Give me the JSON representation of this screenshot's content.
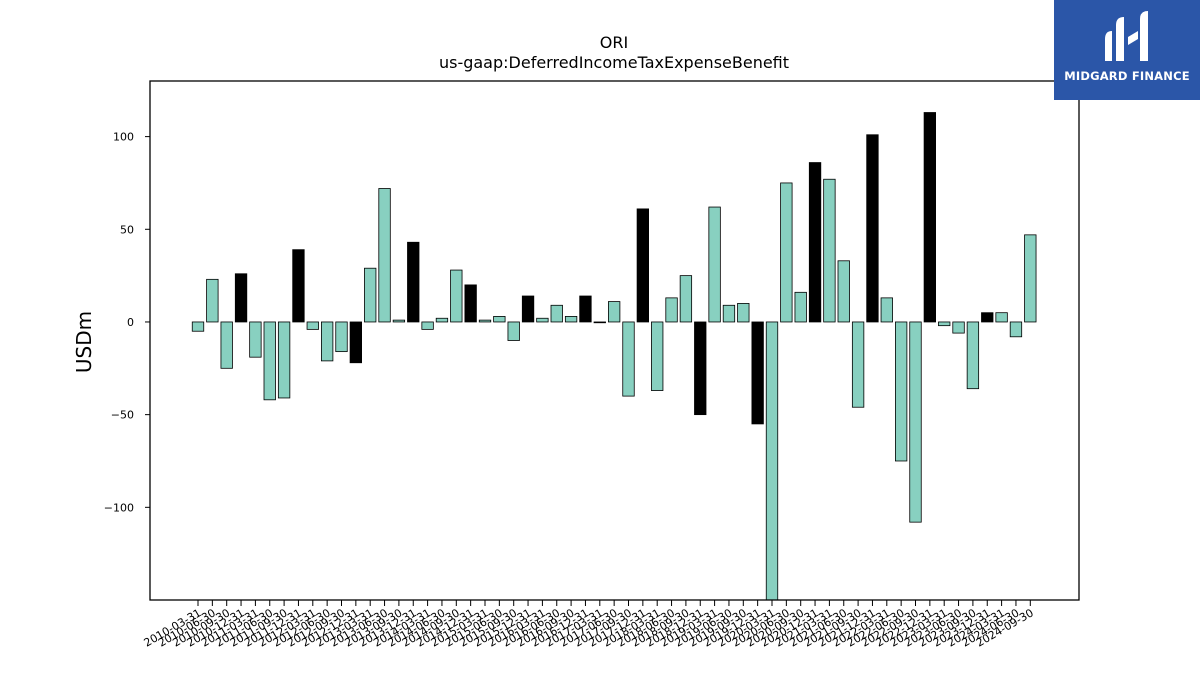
{
  "chart_data": {
    "type": "bar",
    "title": "ORI",
    "subtitle": "us-gaap:DeferredIncomeTaxExpenseBenefit",
    "xlabel": "",
    "ylabel": "USDm",
    "ylim": [
      -150,
      130
    ],
    "yticks": [
      -100,
      -50,
      0,
      50,
      100
    ],
    "grid": false,
    "colors": {
      "default": "#88d0c0",
      "highlight": "#000000",
      "edge": "#000000"
    },
    "categories": [
      "2010-03-31",
      "2010-06-30",
      "2010-09-30",
      "2010-12-31",
      "2011-03-31",
      "2011-06-30",
      "2011-09-30",
      "2011-12-31",
      "2012-03-31",
      "2012-06-30",
      "2012-09-30",
      "2012-12-31",
      "2013-03-31",
      "2013-06-30",
      "2013-09-30",
      "2013-12-31",
      "2014-03-31",
      "2014-06-30",
      "2014-09-30",
      "2014-12-31",
      "2015-03-31",
      "2015-06-30",
      "2015-09-30",
      "2015-12-31",
      "2016-03-31",
      "2016-06-30",
      "2016-09-30",
      "2016-12-31",
      "2017-03-31",
      "2017-06-30",
      "2017-09-30",
      "2017-12-31",
      "2018-03-31",
      "2018-06-30",
      "2018-09-30",
      "2018-12-31",
      "2019-03-31",
      "2019-06-30",
      "2019-09-30",
      "2019-12-31",
      "2020-03-31",
      "2020-06-30",
      "2020-09-30",
      "2020-12-31",
      "2021-03-31",
      "2021-06-30",
      "2021-09-30",
      "2021-12-31",
      "2022-03-31",
      "2022-06-30",
      "2022-09-30",
      "2022-12-31",
      "2023-03-31",
      "2023-06-30",
      "2023-09-30",
      "2023-12-31",
      "2024-03-31",
      "2024-06-30",
      "2024-09-30"
    ],
    "values": [
      -5,
      23,
      -25,
      26,
      -19,
      -42,
      -41,
      39,
      -4,
      -21,
      -16,
      -22,
      29,
      72,
      1,
      43,
      -4,
      2,
      28,
      20,
      1,
      3,
      -10,
      14,
      2,
      9,
      3,
      14,
      0,
      11,
      -40,
      61,
      -37,
      13,
      25,
      -50,
      62,
      9,
      10,
      -55,
      -150,
      75,
      16,
      86,
      77,
      33,
      -46,
      101,
      13,
      -75,
      -108,
      113,
      -2,
      -6,
      -36,
      5,
      5,
      -8,
      47
    ],
    "highlight": [
      false,
      false,
      false,
      true,
      false,
      false,
      false,
      true,
      false,
      false,
      false,
      true,
      false,
      false,
      false,
      true,
      false,
      false,
      false,
      true,
      false,
      false,
      false,
      true,
      false,
      false,
      false,
      true,
      false,
      false,
      false,
      true,
      false,
      false,
      false,
      true,
      false,
      false,
      false,
      true,
      false,
      false,
      false,
      true,
      false,
      false,
      false,
      true,
      false,
      false,
      false,
      true,
      false,
      false,
      false,
      true,
      false,
      false,
      false
    ]
  },
  "logo": {
    "name": "MIDGARD FINANCE"
  }
}
